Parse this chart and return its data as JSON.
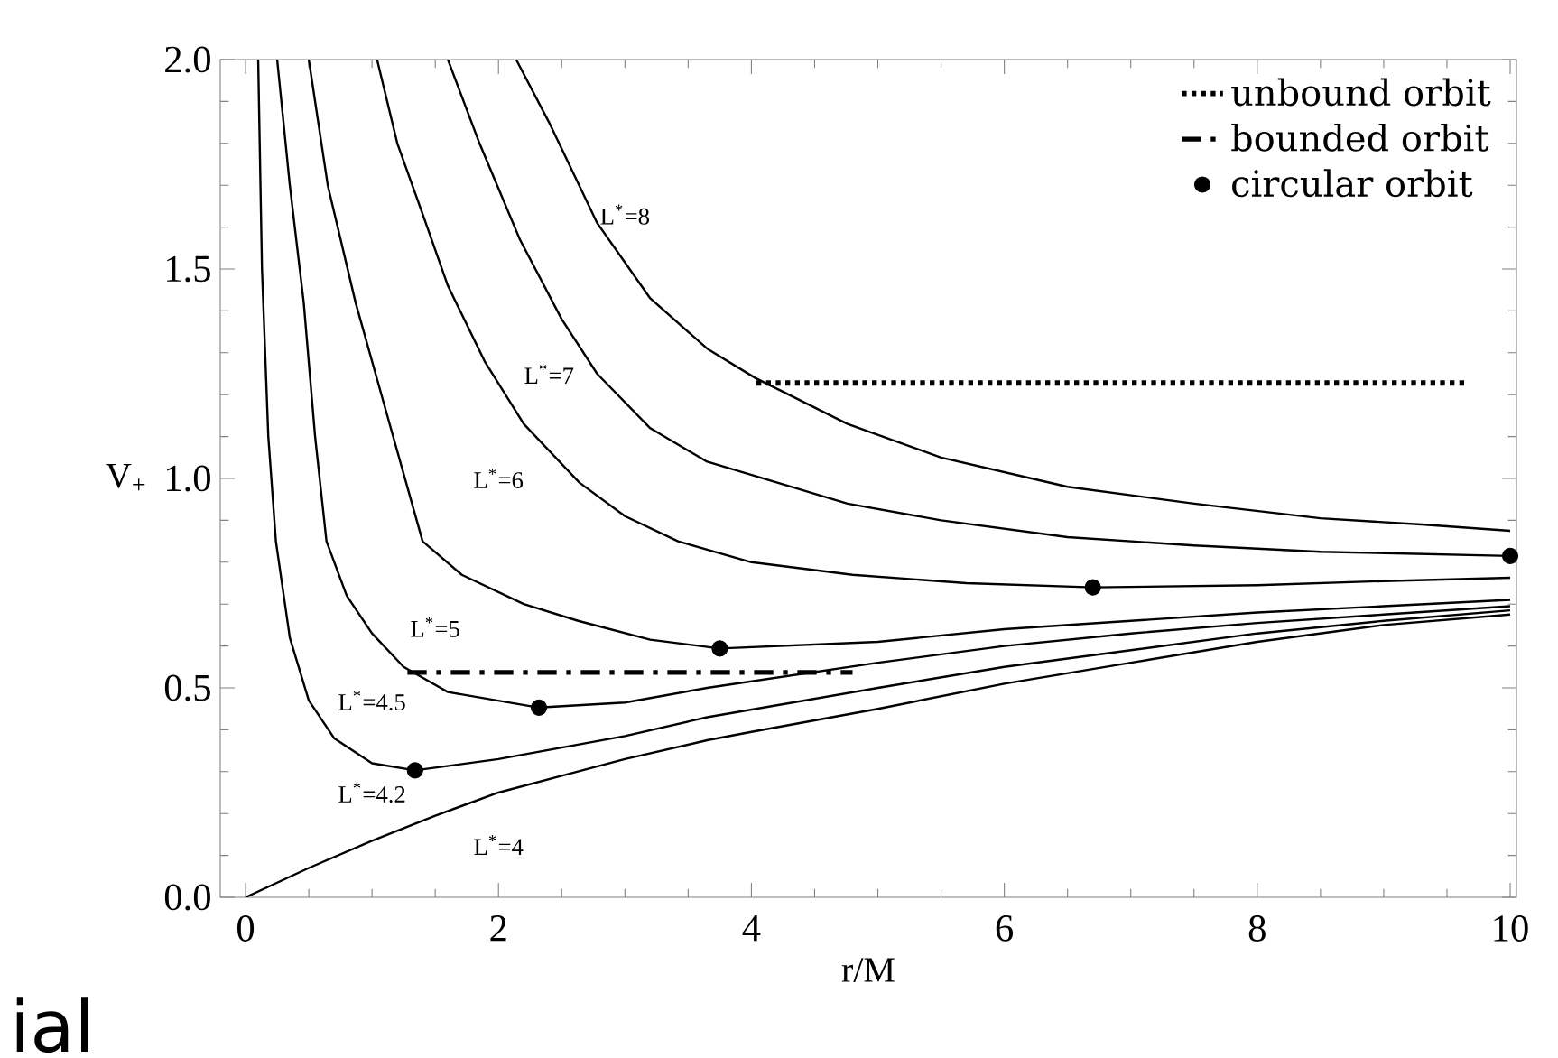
{
  "chart_data": {
    "type": "line",
    "xlabel": "r/M",
    "ylabel": "V$_{+}$",
    "xlim": [
      -0.2,
      10.05
    ],
    "ylim": [
      0,
      2.0
    ],
    "xticks": [
      0,
      2,
      4,
      6,
      8,
      10
    ],
    "yticks": [
      {
        "value": 0,
        "label": "0.0"
      },
      {
        "value": 0.5,
        "label": "0.5"
      },
      {
        "value": 1.0,
        "label": "1.0"
      },
      {
        "value": 1.5,
        "label": "1.5"
      },
      {
        "value": 2.0,
        "label": "2.0"
      }
    ],
    "legend": "top right",
    "series": [
      {
        "color": "#000000",
        "x": [
          0,
          0.5,
          1,
          1.5,
          2,
          2.5,
          3,
          3.65,
          4,
          5,
          6,
          7,
          8,
          9,
          10
        ],
        "values": [
          0,
          0.07,
          0.135,
          0.195,
          0.25,
          0.29,
          0.33,
          0.375,
          0.395,
          0.45,
          0.51,
          0.56,
          0.61,
          0.65,
          0.675
        ]
      },
      {
        "color": "#000000",
        "x": [
          0.1,
          0.13,
          0.18,
          0.24,
          0.35,
          0.5,
          0.7,
          1.0,
          1.34,
          2,
          3,
          3.65,
          5,
          6,
          7,
          8,
          9,
          10
        ],
        "values": [
          2.0,
          1.5,
          1.1,
          0.85,
          0.62,
          0.47,
          0.38,
          0.32,
          0.303,
          0.33,
          0.385,
          0.43,
          0.5,
          0.55,
          0.59,
          0.63,
          0.66,
          0.685
        ]
      },
      {
        "color": "#000000",
        "x": [
          0.25,
          0.35,
          0.46,
          0.55,
          0.64,
          0.8,
          1.0,
          1.25,
          1.6,
          2.32,
          3,
          3.65,
          5,
          6,
          7,
          8,
          9,
          10
        ],
        "values": [
          2.0,
          1.7,
          1.42,
          1.1,
          0.85,
          0.72,
          0.63,
          0.55,
          0.49,
          0.453,
          0.465,
          0.5,
          0.56,
          0.6,
          0.63,
          0.655,
          0.675,
          0.695
        ]
      },
      {
        "color": "#000000",
        "x": [
          0.5,
          0.65,
          0.87,
          1.13,
          1.4,
          1.71,
          2.2,
          2.63,
          3.2,
          3.75,
          5,
          6,
          7,
          8,
          9,
          10
        ],
        "values": [
          2.0,
          1.7,
          1.42,
          1.14,
          0.85,
          0.77,
          0.7,
          0.66,
          0.615,
          0.594,
          0.61,
          0.64,
          0.66,
          0.68,
          0.695,
          0.71
        ]
      },
      {
        "color": "#000000",
        "x": [
          1.04,
          1.2,
          1.39,
          1.6,
          1.89,
          2.2,
          2.64,
          3.0,
          3.42,
          4,
          4.8,
          5.7,
          6.7,
          8,
          9,
          10
        ],
        "values": [
          2.0,
          1.8,
          1.64,
          1.46,
          1.28,
          1.13,
          0.99,
          0.91,
          0.85,
          0.8,
          0.77,
          0.75,
          0.74,
          0.745,
          0.755,
          0.763
        ]
      },
      {
        "color": "#000000",
        "x": [
          1.6,
          1.85,
          2.17,
          2.5,
          2.78,
          3.2,
          3.65,
          4.76,
          5.5,
          6.5,
          7.5,
          8.5,
          10
        ],
        "values": [
          2.0,
          1.8,
          1.57,
          1.38,
          1.25,
          1.12,
          1.04,
          0.94,
          0.9,
          0.86,
          0.84,
          0.825,
          0.815
        ]
      },
      {
        "color": "#000000",
        "x": [
          2.14,
          2.4,
          2.78,
          3.2,
          3.65,
          4.03,
          4.76,
          5.5,
          6.5,
          7.5,
          8.5,
          9.3,
          10
        ],
        "values": [
          2.0,
          1.85,
          1.61,
          1.43,
          1.31,
          1.24,
          1.13,
          1.05,
          0.98,
          0.94,
          0.905,
          0.89,
          0.875
        ]
      },
      {
        "name": "unbound orbit",
        "color": "#000000",
        "line_style": "dotted",
        "x": [
          4.04,
          9.65
        ],
        "values": [
          1.228,
          1.228
        ]
      },
      {
        "name": "bounded orbit",
        "color": "#000000",
        "line_style": "dashdot",
        "x": [
          1.28,
          4.8
        ],
        "values": [
          0.537,
          0.537
        ]
      },
      {
        "name": "circular orbit",
        "type": "scatter",
        "marker": "circle",
        "color": "#000000",
        "x": [
          1.34,
          2.32,
          3.75,
          6.7,
          10
        ],
        "values": [
          0.303,
          0.453,
          0.594,
          0.74,
          0.815
        ]
      }
    ],
    "annotations": [
      "L$^{*}$=8",
      "L$^{*}$=7",
      "L$^{*}$=6",
      "L$^{*}$=5",
      "L$^{*}$=4.5",
      "L$^{*}$=4.2",
      "L$^{*}$=4",
      "ial"
    ]
  }
}
